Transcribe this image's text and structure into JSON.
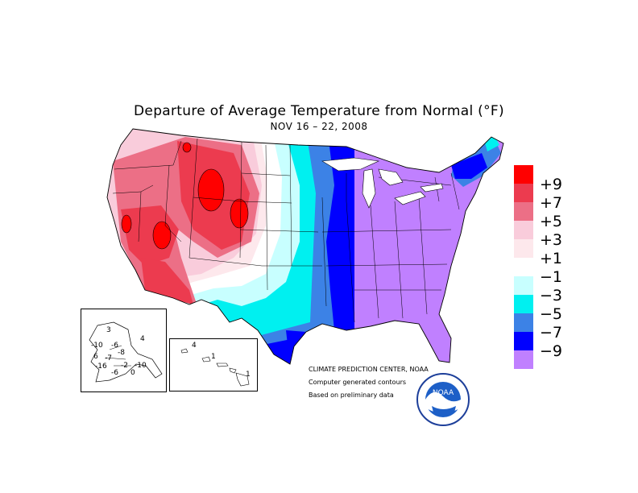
{
  "title": "Departure of Average Temperature from Normal (°F)",
  "subtitle": "NOV 16 – 22, 2008",
  "legend": {
    "boxes": [
      {
        "color": "#ff0000"
      },
      {
        "color": "#ec3b4f"
      },
      {
        "color": "#ec6f86"
      },
      {
        "color": "#f9ccdb"
      },
      {
        "color": "#fde8ec"
      },
      {
        "color": "#ffffff"
      },
      {
        "color": "#c8ffff"
      },
      {
        "color": "#00f0f0"
      },
      {
        "color": "#3c82e6"
      },
      {
        "color": "#0000ff"
      },
      {
        "color": "#c080ff"
      }
    ],
    "labels": [
      "+9",
      "+7",
      "+5",
      "+3",
      "+1",
      "−1",
      "−3",
      "−5",
      "−7",
      "−9"
    ]
  },
  "notes": {
    "line1": "CLIMATE PREDICTION CENTER, NOAA",
    "line2": "Computer generated contours",
    "line3": "Based on preliminary data"
  },
  "alaska_labels": [
    "-10",
    "-6",
    "-8",
    "-16",
    "-7",
    "-2",
    "-10",
    "-6",
    "4",
    "0",
    "6",
    "3"
  ],
  "hawaii_labels": [
    "4",
    "1",
    "1"
  ],
  "logo": {
    "text": "NOAA"
  }
}
